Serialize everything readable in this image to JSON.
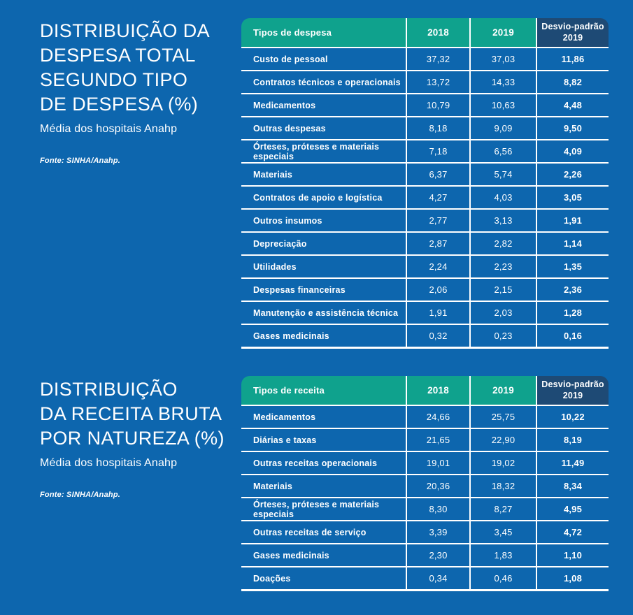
{
  "theme": {
    "background_blue": "#0d66ae",
    "header_teal": "#0fa28d",
    "header_navy": "#1e4a75",
    "text_white": "#ffffff"
  },
  "sections": [
    {
      "title_lines": [
        "DISTRIBUIÇÃO DA",
        "DESPESA TOTAL",
        "SEGUNDO TIPO",
        "DE DESPESA (%)"
      ],
      "subtitle": "Média dos hospitais Anahp",
      "source": "Fonte: SINHA/Anahp.",
      "table": {
        "headers": [
          "Tipos de despesa",
          "2018",
          "2019",
          "Desvio-padrão 2019"
        ],
        "rows": [
          [
            "Custo de pessoal",
            "37,32",
            "37,03",
            "11,86"
          ],
          [
            "Contratos técnicos e operacionais",
            "13,72",
            "14,33",
            "8,82"
          ],
          [
            "Medicamentos",
            "10,79",
            "10,63",
            "4,48"
          ],
          [
            "Outras despesas",
            "8,18",
            "9,09",
            "9,50"
          ],
          [
            "Órteses, próteses e materiais especiais",
            "7,18",
            "6,56",
            "4,09"
          ],
          [
            "Materiais",
            "6,37",
            "5,74",
            "2,26"
          ],
          [
            "Contratos de apoio e logística",
            "4,27",
            "4,03",
            "3,05"
          ],
          [
            "Outros insumos",
            "2,77",
            "3,13",
            "1,91"
          ],
          [
            "Depreciação",
            "2,87",
            "2,82",
            "1,14"
          ],
          [
            "Utilidades",
            "2,24",
            "2,23",
            "1,35"
          ],
          [
            "Despesas financeiras",
            "2,06",
            "2,15",
            "2,36"
          ],
          [
            "Manutenção e assistência técnica",
            "1,91",
            "2,03",
            "1,28"
          ],
          [
            "Gases medicinais",
            "0,32",
            "0,23",
            "0,16"
          ]
        ]
      }
    },
    {
      "title_lines": [
        "DISTRIBUIÇÃO",
        "DA RECEITA BRUTA",
        "POR NATUREZA (%)"
      ],
      "subtitle": "Média dos hospitais Anahp",
      "source": "Fonte: SINHA/Anahp.",
      "table": {
        "headers": [
          "Tipos de receita",
          "2018",
          "2019",
          "Desvio-padrão 2019"
        ],
        "rows": [
          [
            "Medicamentos",
            "24,66",
            "25,75",
            "10,22"
          ],
          [
            "Diárias e taxas",
            "21,65",
            "22,90",
            "8,19"
          ],
          [
            "Outras receitas operacionais",
            "19,01",
            "19,02",
            "11,49"
          ],
          [
            "Materiais",
            "20,36",
            "18,32",
            "8,34"
          ],
          [
            "Órteses, próteses e materiais especiais",
            "8,30",
            "8,27",
            "4,95"
          ],
          [
            "Outras receitas de serviço",
            "3,39",
            "3,45",
            "4,72"
          ],
          [
            "Gases medicinais",
            "2,30",
            "1,83",
            "1,10"
          ],
          [
            "Doações",
            "0,34",
            "0,46",
            "1,08"
          ]
        ]
      }
    }
  ]
}
